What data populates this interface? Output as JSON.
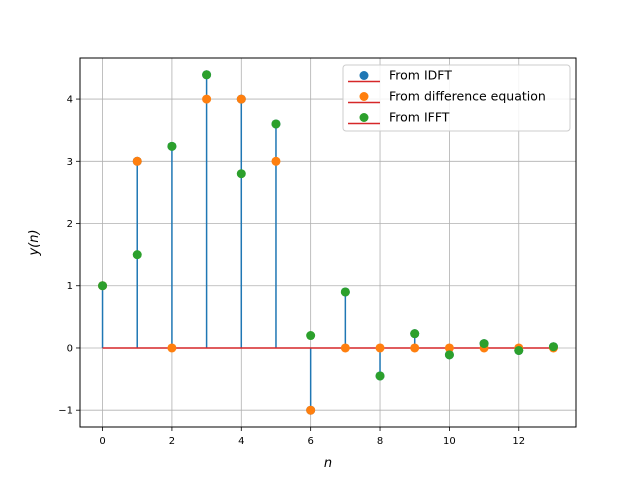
{
  "chart_data": {
    "type": "stem",
    "xlabel": "n",
    "ylabel": "y(n)",
    "xlim": [
      -0.65,
      13.65
    ],
    "ylim": [
      -1.27,
      4.66
    ],
    "grid": true,
    "legend_position": "upper-right",
    "x_ticks": [
      {
        "value": 0,
        "label": "0"
      },
      {
        "value": 2,
        "label": "2"
      },
      {
        "value": 4,
        "label": "4"
      },
      {
        "value": 6,
        "label": "6"
      },
      {
        "value": 8,
        "label": "8"
      },
      {
        "value": 10,
        "label": "10"
      },
      {
        "value": 12,
        "label": "12"
      }
    ],
    "y_ticks": [
      {
        "value": -1,
        "label": "−1"
      },
      {
        "value": 0,
        "label": "0"
      },
      {
        "value": 1,
        "label": "1"
      },
      {
        "value": 2,
        "label": "2"
      },
      {
        "value": 3,
        "label": "3"
      },
      {
        "value": 4,
        "label": "4"
      }
    ],
    "n": [
      0,
      1,
      2,
      3,
      4,
      5,
      6,
      7,
      8,
      9,
      10,
      11,
      12,
      13
    ],
    "series": [
      {
        "name": "From IDFT",
        "color": "#1f77b4",
        "stem_color": "#1f77b4",
        "baseline_color": "#d62728",
        "values": [
          1,
          3,
          3.24,
          4.39,
          4,
          3.6,
          -1,
          0.9,
          -0.45,
          0.23,
          -0.11,
          0.07,
          -0.04,
          0.02
        ]
      },
      {
        "name": "From difference equation",
        "color": "#ff7f0e",
        "baseline_color": "#d62728",
        "values": [
          1,
          3,
          0,
          4,
          4,
          3,
          -1,
          0,
          0,
          0,
          0,
          0,
          0,
          0
        ]
      },
      {
        "name": "From IFFT",
        "color": "#2ca02c",
        "baseline_color": "#d62728",
        "values": [
          1,
          1.5,
          3.24,
          4.39,
          2.8,
          3.6,
          0.2,
          0.9,
          -0.45,
          0.23,
          -0.11,
          0.07,
          -0.04,
          0.02
        ]
      }
    ]
  }
}
